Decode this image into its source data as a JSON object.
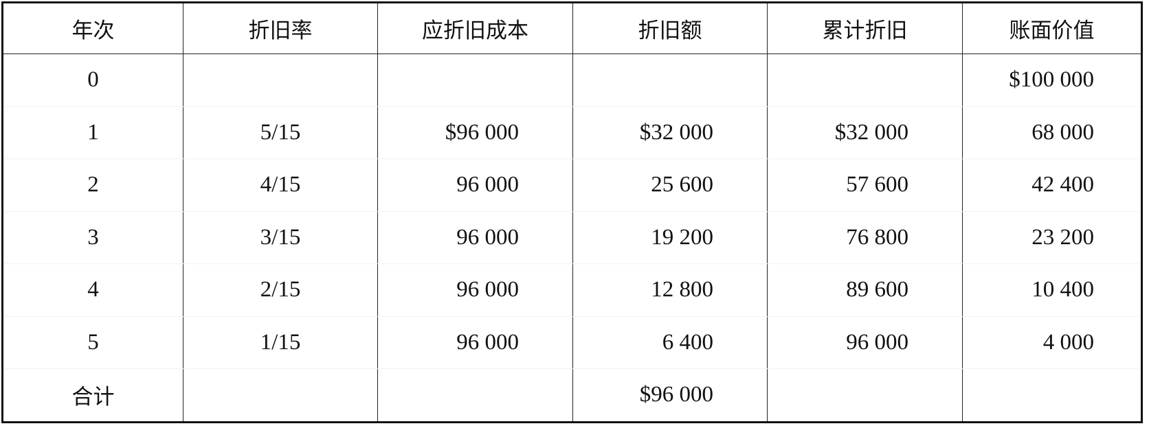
{
  "headers": [
    "年次",
    "折旧率",
    "应折旧成本",
    "折旧额",
    "累计折旧",
    "账面价值"
  ],
  "rows": [
    [
      "0",
      "",
      "",
      "",
      "",
      "$100 000"
    ],
    [
      "1",
      "5/15",
      "$96 000",
      "$32 000",
      "$32 000",
      "68 000"
    ],
    [
      "2",
      "4/15",
      "96 000",
      "25 600",
      "57 600",
      "42 400"
    ],
    [
      "3",
      "3/15",
      "96 000",
      "19 200",
      "76 800",
      "23 200"
    ],
    [
      "4",
      "2/15",
      "96 000",
      "12 800",
      "89 600",
      "10 400"
    ],
    [
      "5",
      "1/15",
      "96 000",
      "6 400",
      "96 000",
      "4 000"
    ]
  ],
  "total": [
    "合计",
    "",
    "",
    "$96 000",
    "",
    ""
  ]
}
